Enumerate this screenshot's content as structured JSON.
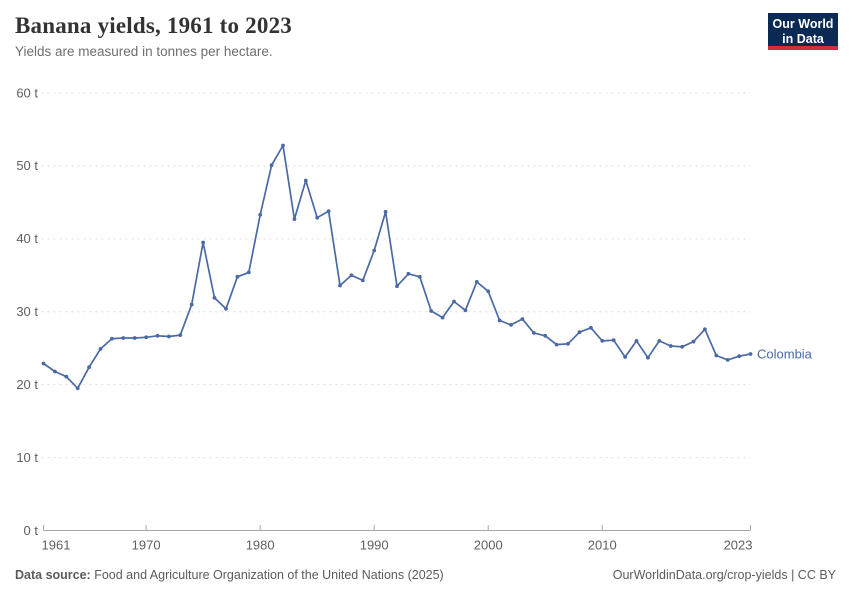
{
  "header": {
    "title": "Banana yields, 1961 to 2023",
    "subtitle": "Yields are measured in tonnes per hectare.",
    "logo": {
      "line1": "Our World",
      "line2": "in Data"
    }
  },
  "colors": {
    "series_blue": "#4a69a5",
    "gridline": "#dcdcdc",
    "axis_line": "#a8a8a8",
    "axis_text": "#606060",
    "logo_bg": "#0a2953",
    "logo_accent": "#d22d3d"
  },
  "chart_data": {
    "type": "line",
    "title": "Banana yields, 1961 to 2023",
    "subtitle": "Yields are measured in tonnes per hectare.",
    "ylabel": "tonnes per hectare",
    "xlabel": "",
    "unit": "t",
    "ylim": [
      0,
      60
    ],
    "yticks": [
      0,
      10,
      20,
      30,
      40,
      50,
      60
    ],
    "ytick_labels": [
      "0 t",
      "10 t",
      "20 t",
      "30 t",
      "40 t",
      "50 t",
      "60 t"
    ],
    "xlim": [
      1961,
      2023
    ],
    "xticks": [
      1961,
      1970,
      1980,
      1990,
      2000,
      2010,
      2023
    ],
    "grid": "horizontal-dashed",
    "legend": "entity-label-at-line-end",
    "x": [
      1961,
      1962,
      1963,
      1964,
      1965,
      1966,
      1967,
      1968,
      1969,
      1970,
      1971,
      1972,
      1973,
      1974,
      1975,
      1976,
      1977,
      1978,
      1979,
      1980,
      1981,
      1982,
      1983,
      1984,
      1985,
      1986,
      1987,
      1988,
      1989,
      1990,
      1991,
      1992,
      1993,
      1994,
      1995,
      1996,
      1997,
      1998,
      1999,
      2000,
      2001,
      2002,
      2003,
      2004,
      2005,
      2006,
      2007,
      2008,
      2009,
      2010,
      2011,
      2012,
      2013,
      2014,
      2015,
      2016,
      2017,
      2018,
      2019,
      2020,
      2021,
      2022,
      2023
    ],
    "series": [
      {
        "name": "Colombia",
        "color": "#4a69a5",
        "values": [
          22.9,
          21.8,
          21.1,
          19.5,
          22.4,
          24.9,
          26.3,
          26.4,
          26.4,
          26.5,
          26.7,
          26.6,
          26.8,
          31.0,
          39.5,
          31.9,
          30.4,
          34.8,
          35.4,
          43.3,
          50.1,
          52.8,
          42.7,
          48.0,
          42.9,
          43.8,
          33.6,
          35.0,
          34.3,
          38.4,
          43.7,
          33.5,
          35.2,
          34.8,
          30.1,
          29.2,
          31.4,
          30.2,
          34.1,
          32.8,
          28.8,
          28.2,
          29.0,
          27.1,
          26.7,
          25.5,
          25.6,
          27.2,
          27.8,
          26.0,
          26.1,
          23.8,
          26.0,
          23.7,
          26.0,
          25.3,
          25.2,
          25.9,
          27.6,
          24.0,
          23.4,
          23.9,
          24.2
        ]
      }
    ]
  },
  "footer": {
    "data_source_label": "Data source:",
    "data_source_text": " Food and Agriculture Organization of the United Nations (2025)",
    "link": "OurWorldinData.org/crop-yields",
    "license": " | CC BY"
  }
}
